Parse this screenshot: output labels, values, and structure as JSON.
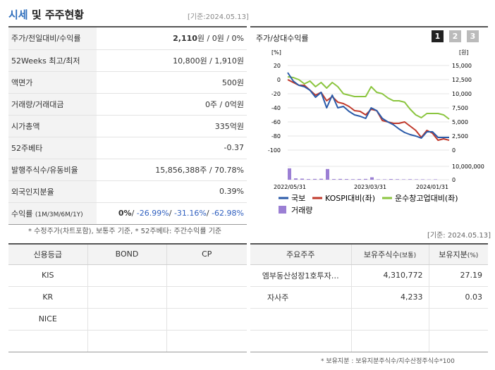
{
  "header": {
    "title_accent": "시세",
    "title_rest": " 및 주주현황",
    "basis_date": "[기준:2024.05.13]"
  },
  "stock_info": [
    {
      "label": "주가/전일대비/수익률",
      "value_strong": "2,110",
      "value_rest": "원 / 0원 / 0%"
    },
    {
      "label": "52Weeks 최고/최저",
      "value": "10,800원 / 1,910원"
    },
    {
      "label": "액면가",
      "value": "500원"
    },
    {
      "label": "거래량/거래대금",
      "value": "0주 / 0억원"
    },
    {
      "label": "시가총액",
      "value": "335억원"
    },
    {
      "label": "52주베타",
      "value": "-0.37"
    },
    {
      "label": "발행주식수/유동비율",
      "value": "15,856,388주 / 70.78%"
    },
    {
      "label": "외국인지분율",
      "value": "0.39%"
    }
  ],
  "returns": {
    "label": "수익률",
    "period": "(1M/3M/6M/1Y)",
    "v1": "0%",
    "sep": "/",
    "v2": "-26.99%",
    "v3": "-31.16%",
    "v4": "-62.98%"
  },
  "footnote_left": "* 수정주가(차트포함), 보통주 기준, * 52주베타: 주간수익률 기준",
  "chart_panel": {
    "title": "주가/상대수익률",
    "pages": [
      "1",
      "2",
      "3"
    ],
    "unit_left": "[%]",
    "unit_right": "[원]"
  },
  "chart_data": {
    "type": "line",
    "x_ticks": [
      "2022/05/31",
      "2023/03/31",
      "2024/01/31"
    ],
    "y_left": {
      "ticks": [
        "20",
        "0",
        "-20",
        "-40",
        "-60",
        "-80",
        "-100"
      ],
      "range": [
        -100,
        20
      ]
    },
    "y_right": {
      "ticks": [
        "15,000",
        "12,500",
        "10,000",
        "7,500",
        "5,000",
        "2,500",
        "0"
      ],
      "range": [
        0,
        15000
      ]
    },
    "y_volume": {
      "ticks": [
        "10,000,000",
        "0"
      ]
    },
    "series": [
      {
        "name": "국보",
        "color": "#2a5aa8",
        "values": [
          10,
          -2,
          -8,
          -10,
          -15,
          -25,
          -18,
          -40,
          -22,
          -40,
          -38,
          -45,
          -50,
          -52,
          -55,
          -40,
          -44,
          -55,
          -60,
          -64,
          -70,
          -75,
          -78,
          -80,
          -83,
          -74,
          -74,
          -82,
          -82,
          -82
        ]
      },
      {
        "name": "KOSPI대비(좌)",
        "color": "#c0392b",
        "values": [
          0,
          -4,
          -8,
          -8,
          -15,
          -22,
          -18,
          -30,
          -24,
          -32,
          -34,
          -38,
          -44,
          -45,
          -50,
          -42,
          -44,
          -58,
          -60,
          -62,
          -62,
          -60,
          -66,
          -72,
          -82,
          -72,
          -76,
          -86,
          -84,
          -86
        ]
      },
      {
        "name": "운수창고업대비(좌)",
        "color": "#8bc53f",
        "values": [
          4,
          3,
          0,
          -6,
          -2,
          -10,
          -4,
          -12,
          -4,
          -10,
          -20,
          -22,
          -24,
          -24,
          -24,
          -10,
          -18,
          -20,
          -26,
          -30,
          -30,
          -32,
          -42,
          -50,
          -54,
          -48,
          -48,
          -48,
          -50,
          -56
        ]
      },
      {
        "name": "거래량",
        "color": "#9b7fd4",
        "values": [
          8.5,
          1,
          0.8,
          0.5,
          0.6,
          0.7,
          8.0,
          0.5,
          0.6,
          0.5,
          0.4,
          0.5,
          0.6,
          1.8,
          0.3,
          0.3,
          0.5,
          0.4,
          0.3,
          0.4,
          0.3,
          0.3,
          0.2,
          0.3
        ]
      }
    ]
  },
  "credit_table": {
    "headers": [
      "신용등급",
      "BOND",
      "CP"
    ],
    "rows": [
      [
        "KIS",
        "",
        ""
      ],
      [
        "KR",
        "",
        ""
      ],
      [
        "NICE",
        "",
        ""
      ],
      [
        "",
        "",
        ""
      ]
    ]
  },
  "holder_table": {
    "basis_date": "[기준: 2024.05.13]",
    "headers": [
      "주요주주",
      "보유주식수",
      "(보통)",
      "보유지분",
      "(%)"
    ],
    "rows": [
      [
        "엠부동산성장1호투자…",
        "4,310,772",
        "27.19"
      ],
      [
        "자사주",
        "4,233",
        "0.03"
      ],
      [
        "",
        "",
        ""
      ],
      [
        "",
        "",
        ""
      ]
    ]
  },
  "footnote_right": "* 보유지분 : 보유지분주식수/지수산정주식수*100"
}
